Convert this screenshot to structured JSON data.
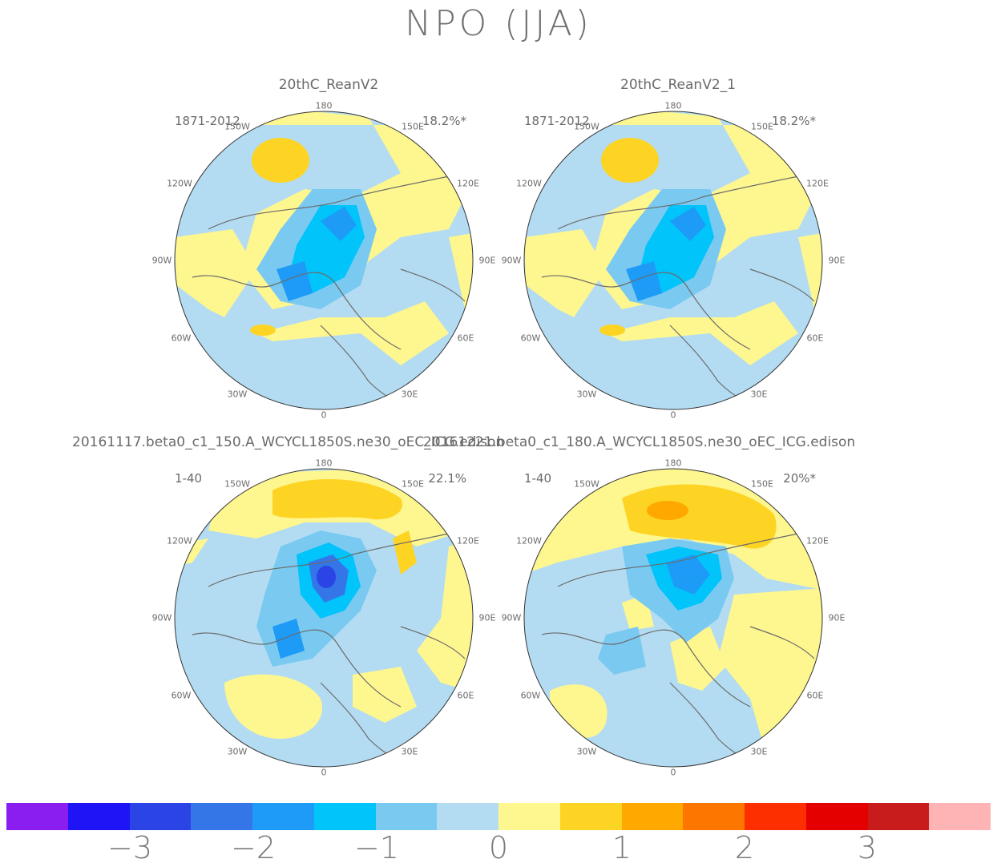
{
  "title": "NPO (JJA)",
  "panels": [
    {
      "title": "20thC_ReanV2",
      "years": "1871-2012",
      "pct": "18.2%*"
    },
    {
      "title": "20thC_ReanV2_1",
      "years": "1871-2012",
      "pct": "18.2%*"
    },
    {
      "title": "20161117.beta0_c1_150.A_WCYCL1850S.ne30_oEC_ICG.edison",
      "years": "1-40",
      "pct": "22.1%"
    },
    {
      "title": "20161221.beta0_c1_180.A_WCYCL1850S.ne30_oEC_ICG.edison",
      "years": "1-40",
      "pct": "20%*"
    }
  ],
  "lon_labels": {
    "l180": "180",
    "l150w": "150W",
    "l150e": "150E",
    "l120w": "120W",
    "l120e": "120E",
    "l90w": "90W",
    "l90e": "90E",
    "l60w": "60W",
    "l60e": "60E",
    "l30w": "30W",
    "l30e": "30E",
    "l0": "0"
  },
  "colorbar": {
    "colors": [
      "#8a1ef0",
      "#1f14f5",
      "#2b44e6",
      "#3476e8",
      "#1e9bf6",
      "#00c4fa",
      "#7ac9f1",
      "#b3dcf2",
      "#fef68f",
      "#fdd423",
      "#fea800",
      "#fd7600",
      "#fd2e00",
      "#e50000",
      "#c81c1c",
      "#feb4b4"
    ],
    "ticks": [
      "−3",
      "−2",
      "−1",
      "0",
      "1",
      "2",
      "3"
    ]
  },
  "colors": {
    "light_blue": "#b3dcf2",
    "mid_blue": "#7ac9f1",
    "cyan": "#00c4fa",
    "blue": "#1e9bf6",
    "dark_blue": "#3476e8",
    "deeper_blue": "#2b44e6",
    "yellow": "#fef68f",
    "gold": "#fdd423",
    "orange": "#fea800",
    "coast": "#6b6b6b"
  }
}
